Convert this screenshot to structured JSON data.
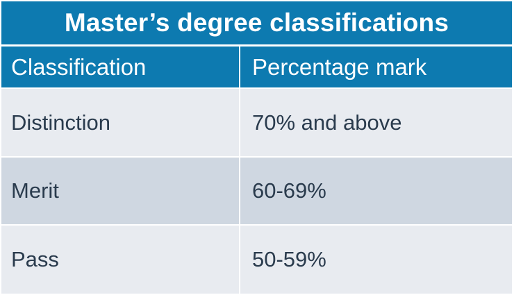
{
  "title": "Master’s degree classifications",
  "headers": [
    "Classification",
    "Percentage mark"
  ],
  "rows": [
    [
      "Distinction",
      "70% and above"
    ],
    [
      "Merit",
      "60-69%"
    ],
    [
      "Pass",
      "50-59%"
    ]
  ],
  "colors": {
    "header_blue": "#0d7ab0",
    "row_light": "#e8ebf0",
    "row_dark": "#cfd7e1",
    "text_dark": "#2a3b4d"
  }
}
